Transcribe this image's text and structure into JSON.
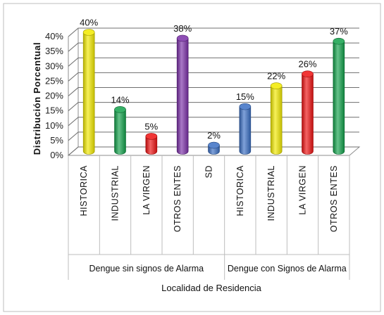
{
  "chart_data": {
    "type": "bar",
    "ylabel": "Distribución Porcentual",
    "xlabel": "Localidad de Residencia",
    "ylim": [
      0,
      40
    ],
    "yticks": [
      "0%",
      "5%",
      "10%",
      "15%",
      "20%",
      "25%",
      "30%",
      "35%",
      "40%"
    ],
    "grid": true,
    "groups": [
      {
        "label": "Dengue sin signos de Alarma",
        "bars": [
          {
            "category": "HISTORICA",
            "value": 40,
            "label": "40%",
            "color": "#f2ea00"
          },
          {
            "category": "INDUSTRIAL",
            "value": 14,
            "label": "14%",
            "color": "#12a14b"
          },
          {
            "category": "LA VIRGEN",
            "value": 5,
            "label": "5%",
            "color": "#ee1111"
          },
          {
            "category": "OTROS ENTES",
            "value": 38,
            "label": "38%",
            "color": "#7a2fa8"
          },
          {
            "category": "SD",
            "value": 2,
            "label": "2%",
            "color": "#3a6fc4"
          }
        ]
      },
      {
        "label": "Dengue con Signos de Alarma",
        "bars": [
          {
            "category": "HISTORICA",
            "value": 15,
            "label": "15%",
            "color": "#3a6fc4"
          },
          {
            "category": "INDUSTRIAL",
            "value": 22,
            "label": "22%",
            "color": "#f2ea00"
          },
          {
            "category": "LA VIRGEN",
            "value": 26,
            "label": "26%",
            "color": "#ee1111"
          },
          {
            "category": "OTROS ENTES",
            "value": 37,
            "label": "37%",
            "color": "#12a14b"
          }
        ]
      }
    ]
  }
}
